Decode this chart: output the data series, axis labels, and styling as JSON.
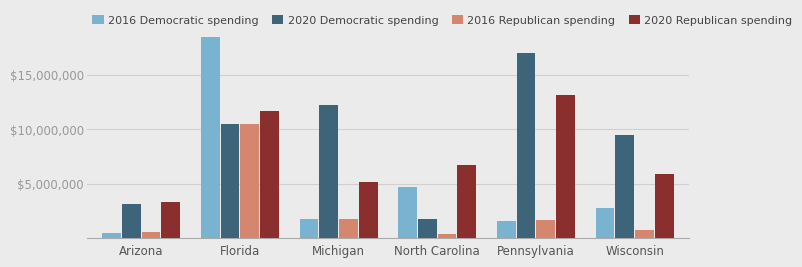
{
  "states": [
    "Arizona",
    "Florida",
    "Michigan",
    "North Carolina",
    "Pennsylvania",
    "Wisconsin"
  ],
  "dem_2016": [
    500000,
    18500000,
    1800000,
    4700000,
    1600000,
    2800000
  ],
  "dem_2020": [
    3200000,
    10500000,
    12200000,
    1800000,
    17000000,
    9500000
  ],
  "rep_2016": [
    600000,
    10500000,
    1800000,
    400000,
    1700000,
    800000
  ],
  "rep_2020": [
    3300000,
    11700000,
    5200000,
    6700000,
    13200000,
    5900000
  ],
  "color_dem_2016": "#7ab3d0",
  "color_dem_2020": "#3d6478",
  "color_rep_2016": "#d4876e",
  "color_rep_2020": "#8b2e2e",
  "legend_labels": [
    "2016 Democratic spending",
    "2020 Democratic spending",
    "2016 Republican spending",
    "2020 Republican spending"
  ],
  "ylim": [
    0,
    21000000
  ],
  "yticks": [
    5000000,
    10000000,
    15000000
  ],
  "background_color": "#ebebeb",
  "tick_fontsize": 8.5,
  "legend_fontsize": 8.0
}
